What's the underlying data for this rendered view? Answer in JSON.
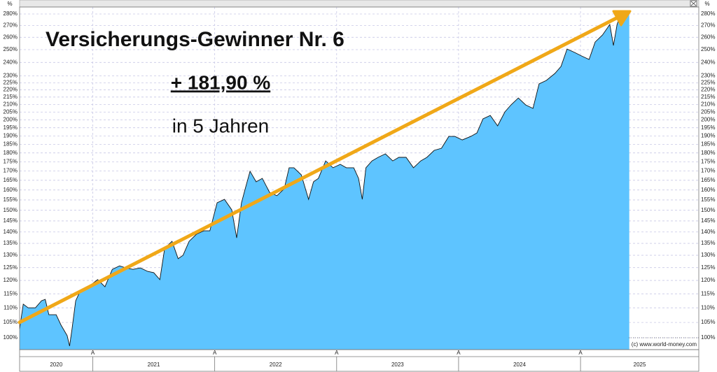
{
  "chart_data": {
    "type": "area",
    "title": "Versicherungs-Gewinner Nr. 6",
    "subtitle": "+ 181,90 %",
    "annotation": "in 5 Jahren",
    "credit": "(c) www.world-money.com",
    "y_unit": "%",
    "tick_marker": "A",
    "periods": [
      "2020",
      "2021",
      "2022",
      "2023",
      "2024",
      "2025"
    ],
    "log_scale": true,
    "grid": true,
    "color": "#5ec4ff",
    "line_color": "#111111",
    "xlim": [
      2020.4,
      2025.97
    ],
    "xticks": [
      2021,
      2022,
      2023,
      2024,
      2025
    ],
    "ylim": [
      96.3,
      286.3
    ],
    "yticks": [
      {
        "value": 100,
        "label": "100%"
      },
      {
        "value": 105,
        "label": "105%"
      },
      {
        "value": 110,
        "label": "110%"
      },
      {
        "value": 115,
        "label": "115%"
      },
      {
        "value": 120,
        "label": "120%"
      },
      {
        "value": 125,
        "label": "125%"
      },
      {
        "value": 130,
        "label": "130%"
      },
      {
        "value": 135,
        "label": "135%"
      },
      {
        "value": 140,
        "label": "140%"
      },
      {
        "value": 145,
        "label": "145%"
      },
      {
        "value": 150,
        "label": "150%"
      },
      {
        "value": 155,
        "label": "155%"
      },
      {
        "value": 160,
        "label": "160%"
      },
      {
        "value": 165,
        "label": "165%"
      },
      {
        "value": 170,
        "label": "170%"
      },
      {
        "value": 175,
        "label": "175%"
      },
      {
        "value": 180,
        "label": "180%"
      },
      {
        "value": 185,
        "label": "185%"
      },
      {
        "value": 190,
        "label": "190%"
      },
      {
        "value": 195,
        "label": "195%"
      },
      {
        "value": 200,
        "label": "200%"
      },
      {
        "value": 205,
        "label": "205%"
      },
      {
        "value": 210,
        "label": "210%"
      },
      {
        "value": 215,
        "label": "215%"
      },
      {
        "value": 220,
        "label": "220%"
      },
      {
        "value": 225,
        "label": "225%"
      },
      {
        "value": 230,
        "label": "230%"
      },
      {
        "value": 240,
        "label": "240%"
      },
      {
        "value": 250,
        "label": "250%"
      },
      {
        "value": 260,
        "label": "260%"
      },
      {
        "value": 270,
        "label": "270%"
      },
      {
        "value": 280,
        "label": "280%"
      }
    ],
    "x": [
      2020.4,
      2020.43,
      2020.47,
      2020.53,
      2020.58,
      2020.61,
      2020.64,
      2020.7,
      2020.74,
      2020.79,
      2020.81,
      2020.83,
      2020.86,
      2020.9,
      2020.96,
      2021.0,
      2021.04,
      2021.1,
      2021.16,
      2021.22,
      2021.27,
      2021.33,
      2021.39,
      2021.45,
      2021.5,
      2021.55,
      2021.59,
      2021.65,
      2021.7,
      2021.74,
      2021.79,
      2021.85,
      2021.91,
      2021.96,
      2022.02,
      2022.08,
      2022.14,
      2022.18,
      2022.22,
      2022.25,
      2022.29,
      2022.34,
      2022.39,
      2022.45,
      2022.51,
      2022.57,
      2022.61,
      2022.65,
      2022.71,
      2022.77,
      2022.81,
      2022.85,
      2022.91,
      2022.97,
      2023.03,
      2023.08,
      2023.14,
      2023.18,
      2023.21,
      2023.24,
      2023.29,
      2023.34,
      2023.4,
      2023.46,
      2023.51,
      2023.57,
      2023.63,
      2023.69,
      2023.74,
      2023.8,
      2023.86,
      2023.92,
      2023.97,
      2024.03,
      2024.1,
      2024.15,
      2024.2,
      2024.26,
      2024.32,
      2024.38,
      2024.43,
      2024.49,
      2024.55,
      2024.61,
      2024.66,
      2024.72,
      2024.79,
      2024.84,
      2024.89,
      2024.95,
      2025.01,
      2025.07,
      2025.12,
      2025.18,
      2025.24,
      2025.27,
      2025.3,
      2025.33,
      2025.36,
      2025.4
    ],
    "values": [
      102.9,
      111.3,
      110,
      110,
      112.5,
      113,
      107.6,
      107.6,
      104.1,
      100.7,
      97.4,
      102.9,
      112.5,
      116.3,
      117.6,
      118.9,
      120.3,
      117.6,
      124.3,
      125.7,
      124.9,
      124.3,
      124.9,
      123.5,
      123,
      120.3,
      132.9,
      135.9,
      128.6,
      130,
      135.9,
      139,
      140.5,
      140.5,
      153.6,
      155.3,
      150.2,
      137.4,
      153.6,
      160.6,
      169.8,
      164.2,
      166,
      158.8,
      157.1,
      160.6,
      171.7,
      171.7,
      167.9,
      155.3,
      164.2,
      166,
      175.5,
      171.7,
      173.6,
      171.7,
      171.7,
      166,
      155.3,
      171.7,
      175.5,
      177.5,
      179.5,
      175.5,
      177.5,
      177.5,
      171.7,
      175.5,
      177.5,
      181.5,
      182.7,
      189.7,
      189.7,
      187.6,
      189.7,
      191.8,
      200.6,
      202.8,
      196.2,
      205.1,
      209.7,
      214.4,
      209.7,
      207.4,
      224.2,
      226.7,
      231.8,
      237,
      250.5,
      247.8,
      245,
      242.3,
      256.1,
      261.9,
      270.8,
      253.3,
      270.8,
      280,
      283.1,
      280
    ]
  }
}
